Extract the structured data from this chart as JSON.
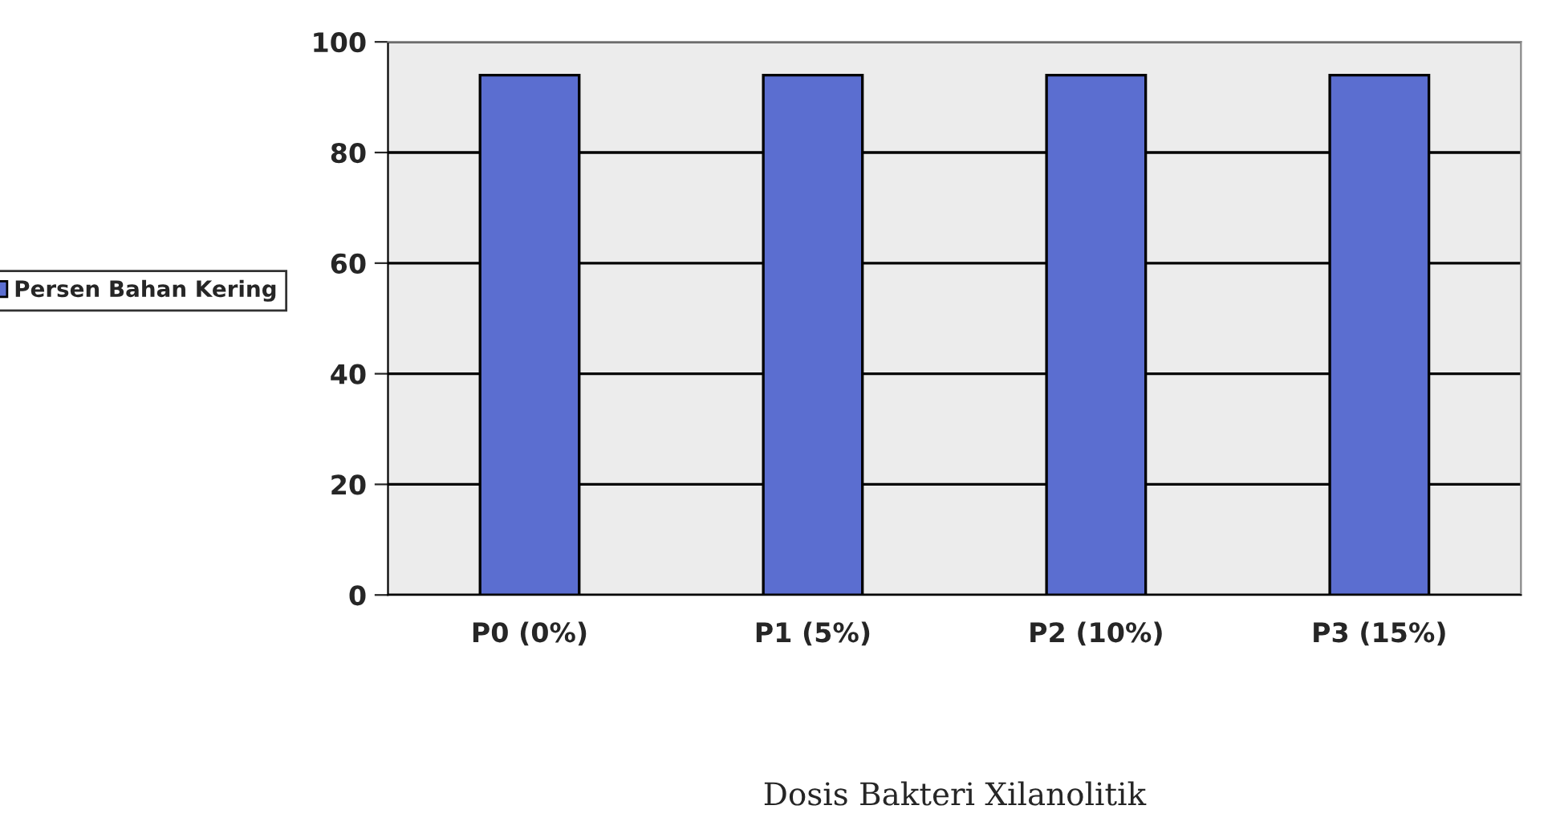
{
  "chart_data": {
    "type": "bar",
    "xlabel": "Dosis Bakteri Xilanolitik",
    "categories": [
      "P0 (0%)",
      "P1 (5%)",
      "P2 (10%)",
      "P3 (15%)"
    ],
    "series": [
      {
        "name": "Persen Bahan Kering",
        "color": "#5b6ed0",
        "values": [
          94,
          94,
          94,
          94
        ]
      }
    ],
    "ylim": [
      0,
      100
    ],
    "yticks": [
      0,
      20,
      40,
      60,
      80,
      100
    ],
    "grid": "y",
    "legend": "left"
  }
}
